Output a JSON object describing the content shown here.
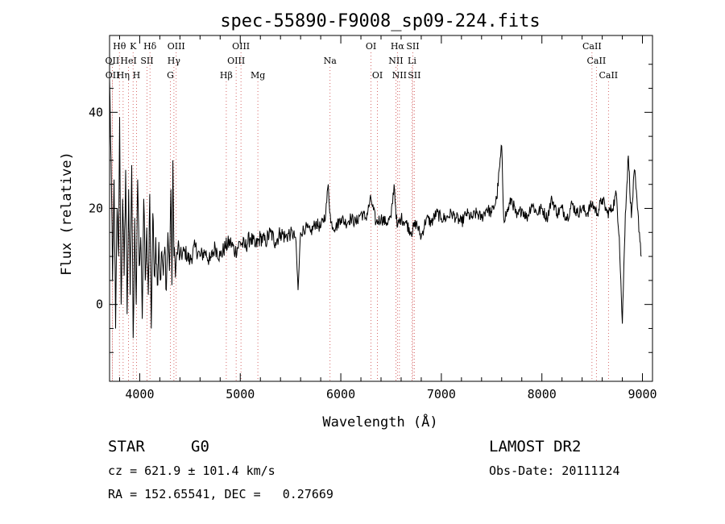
{
  "chart_data": {
    "type": "line",
    "title": "spec-55890-F9008_sp09-224.fits",
    "xlabel": "Wavelength (Å)",
    "ylabel": "Flux (relative)",
    "xlim": [
      3700,
      9100
    ],
    "ylim": [
      -16,
      56
    ],
    "xticks": [
      4000,
      5000,
      6000,
      7000,
      8000,
      9000
    ],
    "yticks": [
      0,
      20,
      40
    ],
    "series": [
      {
        "name": "spectrum",
        "anchors": [
          [
            3700,
            47
          ],
          [
            3715,
            30
          ],
          [
            3730,
            5
          ],
          [
            3745,
            26
          ],
          [
            3760,
            -5
          ],
          [
            3775,
            20
          ],
          [
            3790,
            10
          ],
          [
            3800,
            39
          ],
          [
            3815,
            0
          ],
          [
            3830,
            22
          ],
          [
            3845,
            6
          ],
          [
            3860,
            28
          ],
          [
            3875,
            -2
          ],
          [
            3890,
            24
          ],
          [
            3905,
            2
          ],
          [
            3920,
            29
          ],
          [
            3935,
            -7
          ],
          [
            3950,
            18
          ],
          [
            3965,
            0
          ],
          [
            3980,
            26
          ],
          [
            3995,
            8
          ],
          [
            4010,
            14
          ],
          [
            4025,
            -3
          ],
          [
            4040,
            22
          ],
          [
            4055,
            5
          ],
          [
            4070,
            16
          ],
          [
            4085,
            2
          ],
          [
            4100,
            23
          ],
          [
            4115,
            -5
          ],
          [
            4130,
            19
          ],
          [
            4145,
            6
          ],
          [
            4160,
            14
          ],
          [
            4175,
            4
          ],
          [
            4190,
            13
          ],
          [
            4205,
            5
          ],
          [
            4220,
            11
          ],
          [
            4235,
            6
          ],
          [
            4250,
            12
          ],
          [
            4265,
            3
          ],
          [
            4280,
            15
          ],
          [
            4295,
            7
          ],
          [
            4310,
            24
          ],
          [
            4320,
            4
          ],
          [
            4330,
            30
          ],
          [
            4340,
            10
          ],
          [
            4360,
            8
          ],
          [
            4380,
            12
          ],
          [
            4400,
            10
          ],
          [
            4450,
            11
          ],
          [
            4500,
            9
          ],
          [
            4550,
            12
          ],
          [
            4600,
            10
          ],
          [
            4650,
            11
          ],
          [
            4700,
            9
          ],
          [
            4750,
            12
          ],
          [
            4800,
            10
          ],
          [
            4850,
            12
          ],
          [
            4900,
            13
          ],
          [
            4950,
            11
          ],
          [
            5000,
            13
          ],
          [
            5050,
            12
          ],
          [
            5100,
            14
          ],
          [
            5150,
            12
          ],
          [
            5200,
            14
          ],
          [
            5250,
            13
          ],
          [
            5300,
            15
          ],
          [
            5350,
            13
          ],
          [
            5400,
            15
          ],
          [
            5450,
            14
          ],
          [
            5500,
            15
          ],
          [
            5550,
            14
          ],
          [
            5575,
            3
          ],
          [
            5600,
            15
          ],
          [
            5650,
            16
          ],
          [
            5700,
            15
          ],
          [
            5750,
            17
          ],
          [
            5800,
            16
          ],
          [
            5850,
            19
          ],
          [
            5875,
            25
          ],
          [
            5900,
            17
          ],
          [
            5950,
            16
          ],
          [
            6000,
            18
          ],
          [
            6050,
            17
          ],
          [
            6100,
            18
          ],
          [
            6150,
            17
          ],
          [
            6200,
            19
          ],
          [
            6250,
            18
          ],
          [
            6300,
            22
          ],
          [
            6350,
            17
          ],
          [
            6400,
            18
          ],
          [
            6450,
            17
          ],
          [
            6500,
            18
          ],
          [
            6530,
            25
          ],
          [
            6560,
            16
          ],
          [
            6600,
            18
          ],
          [
            6650,
            17
          ],
          [
            6700,
            15
          ],
          [
            6750,
            17
          ],
          [
            6800,
            14
          ],
          [
            6850,
            18
          ],
          [
            6900,
            17
          ],
          [
            6950,
            19
          ],
          [
            7000,
            18
          ],
          [
            7050,
            18
          ],
          [
            7100,
            19
          ],
          [
            7150,
            18
          ],
          [
            7200,
            17
          ],
          [
            7250,
            19
          ],
          [
            7300,
            18
          ],
          [
            7350,
            19
          ],
          [
            7400,
            18
          ],
          [
            7450,
            20
          ],
          [
            7500,
            19
          ],
          [
            7550,
            22
          ],
          [
            7600,
            33
          ],
          [
            7620,
            18
          ],
          [
            7650,
            19
          ],
          [
            7700,
            22
          ],
          [
            7750,
            18
          ],
          [
            7800,
            20
          ],
          [
            7850,
            18
          ],
          [
            7900,
            21
          ],
          [
            7950,
            19
          ],
          [
            8000,
            20
          ],
          [
            8050,
            18
          ],
          [
            8100,
            22
          ],
          [
            8150,
            19
          ],
          [
            8200,
            20
          ],
          [
            8250,
            18
          ],
          [
            8300,
            21
          ],
          [
            8350,
            19
          ],
          [
            8400,
            20
          ],
          [
            8450,
            19
          ],
          [
            8500,
            21
          ],
          [
            8550,
            19
          ],
          [
            8600,
            22
          ],
          [
            8650,
            19
          ],
          [
            8700,
            20
          ],
          [
            8740,
            23
          ],
          [
            8770,
            14
          ],
          [
            8800,
            -4
          ],
          [
            8830,
            19
          ],
          [
            8860,
            31
          ],
          [
            8890,
            18
          ],
          [
            8920,
            28
          ],
          [
            8950,
            20
          ],
          [
            8990,
            10
          ]
        ]
      }
    ],
    "emission_lines": [
      {
        "label": "Hθ",
        "wave": 3798,
        "row": 1
      },
      {
        "label": "K",
        "wave": 3934,
        "row": 1
      },
      {
        "label": "Hδ",
        "wave": 4102,
        "row": 1
      },
      {
        "label": "OIII",
        "wave": 4363,
        "row": 1
      },
      {
        "label": "OIII",
        "wave": 5007,
        "row": 1
      },
      {
        "label": "OI",
        "wave": 6300,
        "row": 1
      },
      {
        "label": "Hα",
        "wave": 6563,
        "row": 1
      },
      {
        "label": "SII",
        "wave": 6716,
        "row": 1
      },
      {
        "label": "CaII",
        "wave": 8498,
        "row": 1
      },
      {
        "label": "OII",
        "wave": 3727,
        "row": 2
      },
      {
        "label": "HeI",
        "wave": 3889,
        "row": 2
      },
      {
        "label": "SII",
        "wave": 4072,
        "row": 2
      },
      {
        "label": "Hγ",
        "wave": 4340,
        "row": 2
      },
      {
        "label": "OIII",
        "wave": 4959,
        "row": 2
      },
      {
        "label": "Na",
        "wave": 5893,
        "row": 2
      },
      {
        "label": "NII",
        "wave": 6548,
        "row": 2
      },
      {
        "label": "Li",
        "wave": 6708,
        "row": 2
      },
      {
        "label": "CaII",
        "wave": 8542,
        "row": 2
      },
      {
        "label": "OII",
        "wave": 3729,
        "row": 3
      },
      {
        "label": "Hη",
        "wave": 3835,
        "row": 3
      },
      {
        "label": "H",
        "wave": 3968,
        "row": 3
      },
      {
        "label": "G",
        "wave": 4305,
        "row": 3
      },
      {
        "label": "Hβ",
        "wave": 4861,
        "row": 3
      },
      {
        "label": "Mg",
        "wave": 5175,
        "row": 3
      },
      {
        "label": "OI",
        "wave": 6364,
        "row": 3
      },
      {
        "label": "NII",
        "wave": 6583,
        "row": 3
      },
      {
        "label": "SII",
        "wave": 6731,
        "row": 3
      },
      {
        "label": "CaII",
        "wave": 8662,
        "row": 3
      }
    ]
  },
  "info": {
    "class": "STAR",
    "subclass": "G0",
    "survey": "LAMOST DR2",
    "cz": "cz = 621.9 ± 101.4 km/s",
    "obs_date": "Obs-Date: 20111124",
    "radec": "RA = 152.65541, DEC =   0.27669"
  }
}
